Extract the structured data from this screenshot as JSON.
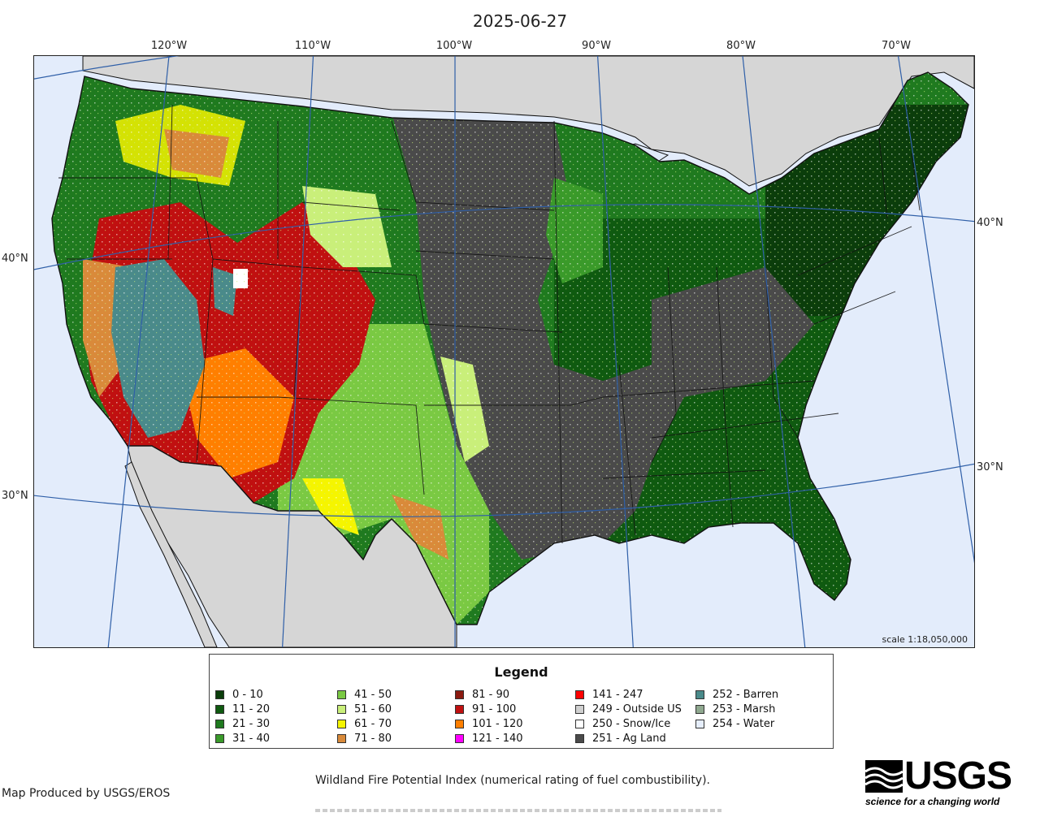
{
  "header": {
    "date": "2025-06-27"
  },
  "map": {
    "longitude_labels": [
      "120°W",
      "110°W",
      "100°W",
      "90°W",
      "80°W",
      "70°W"
    ],
    "latitude_labels_left": [
      "40°N",
      "30°N"
    ],
    "latitude_labels_right": [
      "40°N",
      "30°N"
    ],
    "scale": "scale 1:18,050,000"
  },
  "legend": {
    "title": "Legend",
    "columns": [
      [
        {
          "label": "0 - 10",
          "color": "#0b3d0b"
        },
        {
          "label": "11 - 20",
          "color": "#0f5a10"
        },
        {
          "label": "21 - 30",
          "color": "#1f7a1f"
        },
        {
          "label": "31 - 40",
          "color": "#3a9a2a"
        }
      ],
      [
        {
          "label": "41 - 50",
          "color": "#7ac943"
        },
        {
          "label": "51 - 60",
          "color": "#c9ef7a"
        },
        {
          "label": "61 - 70",
          "color": "#f5f500"
        },
        {
          "label": "71 - 80",
          "color": "#d98a3a"
        }
      ],
      [
        {
          "label": "81 - 90",
          "color": "#8b1a10"
        },
        {
          "label": "91 - 100",
          "color": "#c01010"
        },
        {
          "label": "101 - 120",
          "color": "#ff7f00"
        },
        {
          "label": "121 - 140",
          "color": "#ff00ff"
        }
      ],
      [
        {
          "label": "141 - 247",
          "color": "#ff0000"
        },
        {
          "label": "249 - Outside US",
          "color": "#d0d0d0"
        },
        {
          "label": "250 - Snow/Ice",
          "color": "#ffffff"
        },
        {
          "label": "251 - Ag Land",
          "color": "#4a4a4a"
        }
      ],
      [
        {
          "label": "252 - Barren",
          "color": "#4a8a8a"
        },
        {
          "label": "253 - Marsh",
          "color": "#8fa88f"
        },
        {
          "label": "254 - Water",
          "color": "#e6eefc"
        }
      ]
    ]
  },
  "footer": {
    "caption": "Wildland Fire Potential Index (numerical rating of fuel combustibility).",
    "produced_by": "Map Produced by USGS/EROS",
    "logo_text": "USGS",
    "logo_tagline": "science for a changing world"
  }
}
